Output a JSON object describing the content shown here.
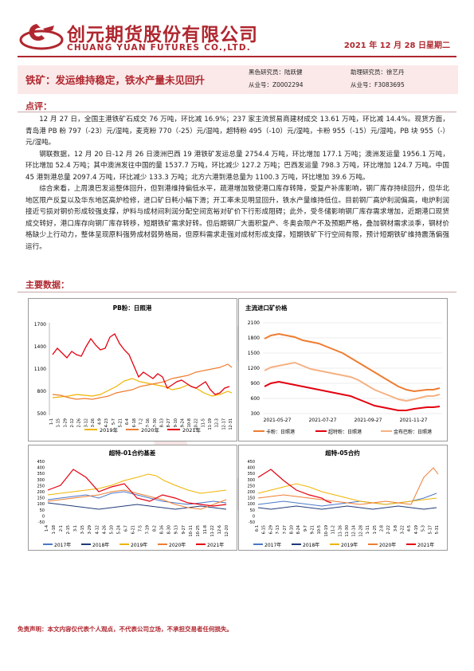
{
  "header": {
    "company_cn": "创元期货股份有限公司",
    "company_en": "CHUANG YUAN FUTURES CO.,LTD.",
    "date": "2021 年 12 月 28 日星期二"
  },
  "report": {
    "title": "铁矿：发运维持稳定，铁水产量未见回升",
    "researcher1": "黑色研究员：陆跃健",
    "researcher1_id": "从业号：Z0002294",
    "researcher2": "助理研究员：徐艺丹",
    "researcher2_id": "从业号：F3083695"
  },
  "comments": {
    "heading": "点评：",
    "p1": "12 月 27 日，全国主港铁矿石成交 76 万吨，环比减 16.9%；237 家主流贸易商建材成交 13.61 万吨，环比减 14.4%。现货方面，青岛港 PB 粉 797（-23）元/湿吨，麦克粉 770（-25）元/湿吨，超特粉 495（-10）元/湿吨，卡粉 955（-15）元/湿吨，PB 块 955（-）元/湿吨。",
    "p2": "钢联数据，12 月 20 日-12 月 26 日澳洲巴西 19 港铁矿发运总量 2754.4 万吨，环比增加 177.1 万吨；澳洲发运量 1956.1 万吨，环比增加 52.4 万吨；其中澳洲发往中国的量 1537.7 万吨，环比减少 127.2 万吨；巴西发运量 798.3 万吨，环比增加 124.7 万吨。中国 45 港到港总量 2097.4 万吨，环比减少 133.3 万吨；北方六港到港总量为 1100.3 万吨，环比增加 39.6 万吨。",
    "p3": "综合来看，上周澳巴发运整体回升，但到港维持偏低水平，疏港增加致使港口库存转降，受复产补库影响，钢厂库存持续回升，但华北地区限产反复以及华东地区高炉检修，进口矿日耗小幅下滑；开工率未见明显回升，铁水产量维持低位。目前钢厂高炉利润偏高，电炉利润接近亏损对钢价形成较强支撑，炉料与成材间利润分配空间宽裕对矿价下行形成阻碍；此外，受冬储影响钢厂库存需求增加，近期港口现货成交转好，港口库存向钢厂库存转移，短期铁矿需求好转。但后期钢厂大面积复产、冬奥会限产不及预期严格，叠加钢材需求淡季，钢材价格缺少上行动力，整体呈现原料强势成材弱势格局，但原料需求走强对成材形成支撑，短期铁矿下行空间有限，预计短期铁矿维持震荡偏强运行。"
  },
  "main_data": {
    "heading": "主要数据："
  },
  "charts": {
    "c1": {
      "title": "PB粉：日照港",
      "yticks": [
        "1700",
        "1400",
        "1100",
        "800",
        "500"
      ],
      "xticks": [
        "1-1",
        "1-15",
        "1-29",
        "2-12",
        "2-26",
        "3-12",
        "3-26",
        "4-9",
        "4-23",
        "5-7",
        "5-21",
        "6-4",
        "6-18",
        "7-2",
        "7-16",
        "7-30",
        "8-13",
        "8-27",
        "9-10",
        "9-24",
        "10-8",
        "10-22",
        "11-5",
        "11-19",
        "12-3",
        "12-17",
        "12-31"
      ],
      "legend": [
        "2019年",
        "2020年",
        "2021年"
      ]
    },
    "c2": {
      "title": "主流进口矿价格",
      "yticks": [
        "2100",
        "1800",
        "1500",
        "1200",
        "900",
        "600",
        "300"
      ],
      "xticks": [
        "2021-05-27",
        "2021-07-27",
        "2021-09-27",
        "2021-11-27"
      ],
      "legend": [
        "卡粉：日照港",
        "超特粉：日照港",
        "金布巴粉：日照港"
      ]
    },
    "c3": {
      "title": "超特-01合约基差",
      "yticks": [
        "450",
        "400",
        "350",
        "300",
        "250",
        "200",
        "150",
        "100",
        "50",
        "0",
        "-50"
      ],
      "xticks": [
        "1-4",
        "1-18",
        "2-1",
        "2-15",
        "3-1",
        "3-15",
        "3-29",
        "4-12",
        "4-26",
        "5-10",
        "5-24",
        "6-7",
        "6-21",
        "7-5",
        "7-19",
        "8-2",
        "8-16",
        "8-30",
        "9-13",
        "9-27",
        "10-11",
        "10-25",
        "11-8",
        "11-22",
        "12-6",
        "12-20"
      ],
      "legend": [
        "2017年",
        "2018年",
        "2019年",
        "2020年",
        "2021年"
      ]
    },
    "c4": {
      "title": "超特-05合约",
      "yticks": [
        "450",
        "400",
        "350",
        "300",
        "250",
        "200",
        "150",
        "100",
        "50",
        "0",
        "-50"
      ],
      "xticks": [
        "6-1",
        "6-15",
        "6-29",
        "7-13",
        "7-27",
        "8-10",
        "8-24",
        "9-7",
        "9-21",
        "10-5",
        "10-19",
        "11-2",
        "11-16",
        "11-30",
        "12-14",
        "12-28",
        "1-11",
        "1-25",
        "2-8",
        "2-22",
        "3-8",
        "3-22",
        "4-5",
        "4-19",
        "5-3",
        "5-17",
        "5-31"
      ],
      "legend": [
        "2017年",
        "2018年",
        "2019年",
        "2020年",
        "2021年"
      ]
    }
  },
  "colors": {
    "brand_red": "#b0272f",
    "y2017": "#4a78c8",
    "y2018": "#1f3a78",
    "y2019": "#f0b400",
    "y2020": "#ee7d31",
    "y2021": "#e3000f",
    "kafen": "#ee7d31",
    "chaotefen": "#e3000f",
    "jinbuba": "#f6b183"
  },
  "disclaimer": "免责声明：本文内容仅代表个人观点，不代表公司立场，不承担交易者任何损失。"
}
